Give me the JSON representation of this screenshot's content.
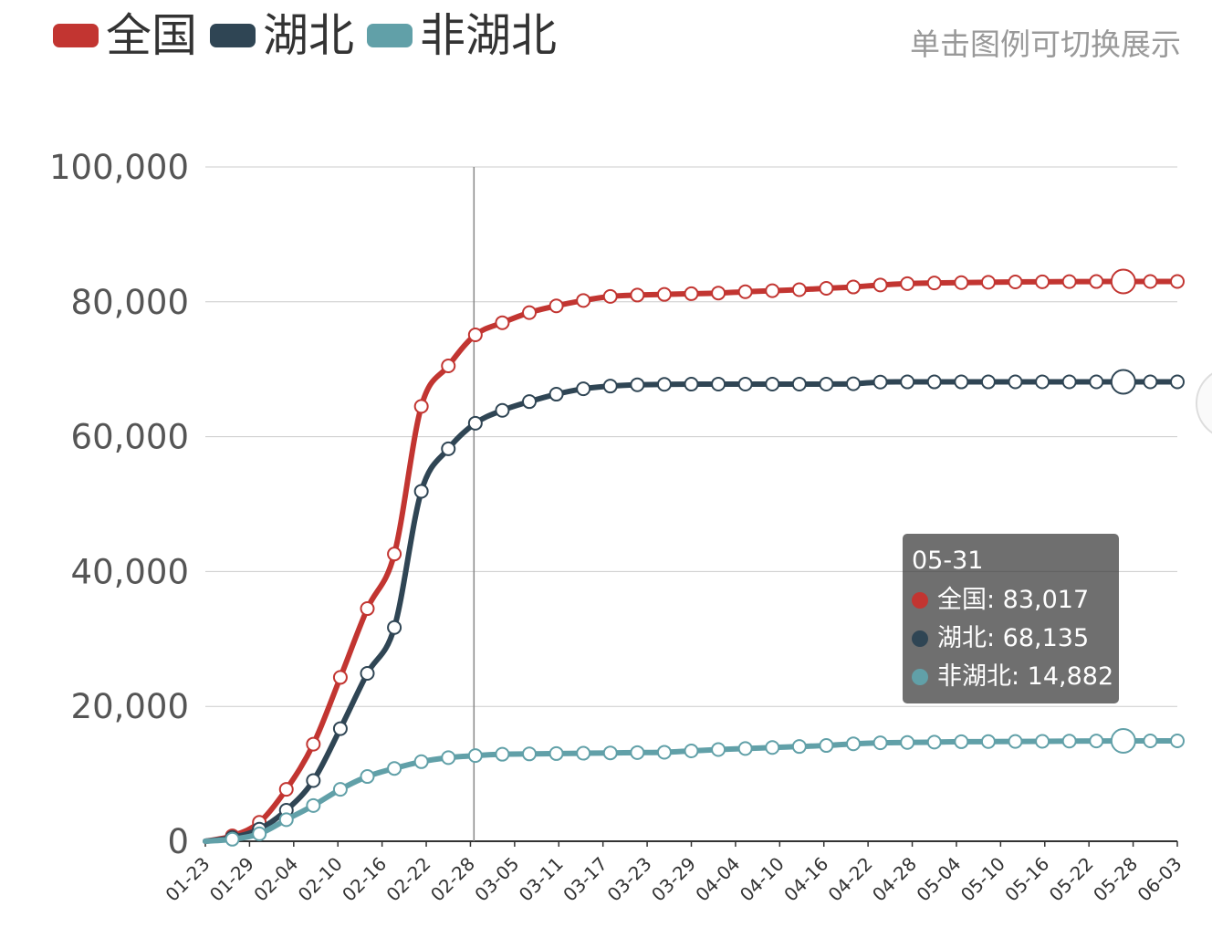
{
  "legend": [
    {
      "label": "全国",
      "color": "#c23531"
    },
    {
      "label": "湖北",
      "color": "#2f4554"
    },
    {
      "label": "非湖北",
      "color": "#61a0a8"
    }
  ],
  "hint": "单击图例可切换展示",
  "tooltip": {
    "title": "05-31",
    "rows": [
      {
        "label": "全国: 83,017",
        "color": "#c23531"
      },
      {
        "label": "湖北: 68,135",
        "color": "#2f4554"
      },
      {
        "label": "非湖北: 14,882",
        "color": "#61a0a8"
      }
    ]
  },
  "chart_data": {
    "type": "line",
    "categories": [
      "01-23",
      "01-29",
      "02-04",
      "02-10",
      "02-16",
      "02-22",
      "02-28",
      "03-05",
      "03-11",
      "03-17",
      "03-23",
      "03-29",
      "04-04",
      "04-10",
      "04-16",
      "04-22",
      "04-28",
      "05-04",
      "05-10",
      "05-16",
      "05-22",
      "05-28",
      "06-03"
    ],
    "ylim": [
      0,
      100000
    ],
    "yticks": [
      "0",
      "20,000",
      "40,000",
      "60,000",
      "80,000",
      "100,000"
    ],
    "grid": true,
    "legend_position": "top-left",
    "highlight": {
      "category": "05-31",
      "quantity": "value"
    },
    "series": [
      {
        "name": "全国",
        "color": "#c23531",
        "points": [
          [
            0,
            0
          ],
          [
            1,
            800
          ],
          [
            2,
            2800
          ],
          [
            3,
            7700
          ],
          [
            4,
            14400
          ],
          [
            5,
            24300
          ],
          [
            6,
            34500
          ],
          [
            7,
            42600
          ],
          [
            8,
            64500
          ],
          [
            9,
            70500
          ],
          [
            10,
            75100
          ],
          [
            11,
            76900
          ],
          [
            12,
            78400
          ],
          [
            13,
            79400
          ],
          [
            14,
            80200
          ],
          [
            15,
            80800
          ],
          [
            16,
            81000
          ],
          [
            17,
            81100
          ],
          [
            18,
            81200
          ],
          [
            19,
            81300
          ],
          [
            20,
            81500
          ],
          [
            21,
            81650
          ],
          [
            22,
            81800
          ],
          [
            23,
            82000
          ],
          [
            24,
            82200
          ],
          [
            25,
            82500
          ],
          [
            26,
            82700
          ],
          [
            27,
            82800
          ],
          [
            28,
            82850
          ],
          [
            29,
            82900
          ],
          [
            30,
            82950
          ],
          [
            31,
            82970
          ],
          [
            32,
            83000
          ],
          [
            33,
            83010
          ],
          [
            34,
            83017
          ],
          [
            35,
            83017
          ],
          [
            36,
            83017
          ]
        ]
      },
      {
        "name": "湖北",
        "color": "#2f4554",
        "points": [
          [
            0,
            0
          ],
          [
            1,
            550
          ],
          [
            2,
            1800
          ],
          [
            3,
            4600
          ],
          [
            4,
            9000
          ],
          [
            5,
            16700
          ],
          [
            6,
            24900
          ],
          [
            7,
            31700
          ],
          [
            8,
            51900
          ],
          [
            9,
            58200
          ],
          [
            10,
            62000
          ],
          [
            11,
            63900
          ],
          [
            12,
            65200
          ],
          [
            13,
            66300
          ],
          [
            14,
            67100
          ],
          [
            15,
            67500
          ],
          [
            16,
            67700
          ],
          [
            17,
            67760
          ],
          [
            18,
            67790
          ],
          [
            19,
            67800
          ],
          [
            20,
            67800
          ],
          [
            21,
            67800
          ],
          [
            22,
            67800
          ],
          [
            23,
            67800
          ],
          [
            24,
            67850
          ],
          [
            25,
            68100
          ],
          [
            26,
            68128
          ],
          [
            27,
            68128
          ],
          [
            28,
            68128
          ],
          [
            29,
            68128
          ],
          [
            30,
            68130
          ],
          [
            31,
            68130
          ],
          [
            32,
            68132
          ],
          [
            33,
            68135
          ],
          [
            34,
            68135
          ],
          [
            35,
            68135
          ],
          [
            36,
            68135
          ]
        ]
      },
      {
        "name": "非湖北",
        "color": "#61a0a8",
        "points": [
          [
            0,
            0
          ],
          [
            1,
            300
          ],
          [
            2,
            1100
          ],
          [
            3,
            3200
          ],
          [
            4,
            5300
          ],
          [
            5,
            7700
          ],
          [
            6,
            9600
          ],
          [
            7,
            10800
          ],
          [
            8,
            11800
          ],
          [
            9,
            12400
          ],
          [
            10,
            12700
          ],
          [
            11,
            12900
          ],
          [
            12,
            12950
          ],
          [
            13,
            13000
          ],
          [
            14,
            13050
          ],
          [
            15,
            13100
          ],
          [
            16,
            13150
          ],
          [
            17,
            13200
          ],
          [
            18,
            13400
          ],
          [
            19,
            13600
          ],
          [
            20,
            13750
          ],
          [
            21,
            13900
          ],
          [
            22,
            14050
          ],
          [
            23,
            14200
          ],
          [
            24,
            14450
          ],
          [
            25,
            14600
          ],
          [
            26,
            14650
          ],
          [
            27,
            14700
          ],
          [
            28,
            14760
          ],
          [
            29,
            14780
          ],
          [
            30,
            14800
          ],
          [
            31,
            14820
          ],
          [
            32,
            14850
          ],
          [
            33,
            14870
          ],
          [
            34,
            14882
          ],
          [
            35,
            14882
          ],
          [
            36,
            14882
          ]
        ]
      }
    ]
  }
}
